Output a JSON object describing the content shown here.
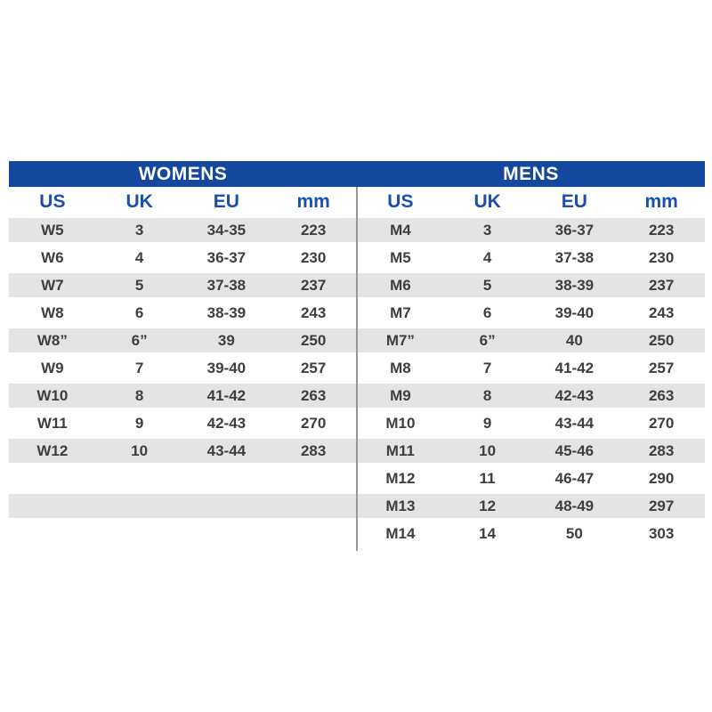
{
  "colors": {
    "header_bar_blue": "#14479E",
    "column_header_blue": "#1A4FB0",
    "row_stripe_gray": "#E4E4E4",
    "data_text_gray": "#3E3E3E",
    "divider_gray": "#979797"
  },
  "chart_data": [
    {
      "type": "table",
      "title": "WOMENS",
      "columns": {
        "us": "US",
        "uk": "UK",
        "eu": "EU",
        "mm": "mm"
      },
      "rows": [
        {
          "us": "W5",
          "uk": "3",
          "eu": "34-35",
          "mm": "223"
        },
        {
          "us": "W6",
          "uk": "4",
          "eu": "36-37",
          "mm": "230"
        },
        {
          "us": "W7",
          "uk": "5",
          "eu": "37-38",
          "mm": "237"
        },
        {
          "us": "W8",
          "uk": "6",
          "eu": "38-39",
          "mm": "243"
        },
        {
          "us": "W8”",
          "uk": "6”",
          "eu": "39",
          "mm": "250"
        },
        {
          "us": "W9",
          "uk": "7",
          "eu": "39-40",
          "mm": "257"
        },
        {
          "us": "W10",
          "uk": "8",
          "eu": "41-42",
          "mm": "263"
        },
        {
          "us": "W11",
          "uk": "9",
          "eu": "42-43",
          "mm": "270"
        },
        {
          "us": "W12",
          "uk": "10",
          "eu": "43-44",
          "mm": "283"
        },
        {
          "us": "",
          "uk": "",
          "eu": "",
          "mm": ""
        },
        {
          "us": "",
          "uk": "",
          "eu": "",
          "mm": ""
        }
      ]
    },
    {
      "type": "table",
      "title": "MENS",
      "columns": {
        "us": "US",
        "uk": "UK",
        "eu": "EU",
        "mm": "mm"
      },
      "rows": [
        {
          "us": "M4",
          "uk": "3",
          "eu": "36-37",
          "mm": "223"
        },
        {
          "us": "M5",
          "uk": "4",
          "eu": "37-38",
          "mm": "230"
        },
        {
          "us": "M6",
          "uk": "5",
          "eu": "38-39",
          "mm": "237"
        },
        {
          "us": "M7",
          "uk": "6",
          "eu": "39-40",
          "mm": "243"
        },
        {
          "us": "M7”",
          "uk": "6”",
          "eu": "40",
          "mm": "250"
        },
        {
          "us": "M8",
          "uk": "7",
          "eu": "41-42",
          "mm": "257"
        },
        {
          "us": "M9",
          "uk": "8",
          "eu": "42-43",
          "mm": "263"
        },
        {
          "us": "M10",
          "uk": "9",
          "eu": "43-44",
          "mm": "270"
        },
        {
          "us": "M11",
          "uk": "10",
          "eu": "45-46",
          "mm": "283"
        },
        {
          "us": "M12",
          "uk": "11",
          "eu": "46-47",
          "mm": "290"
        },
        {
          "us": "M13",
          "uk": "12",
          "eu": "48-49",
          "mm": "297"
        },
        {
          "us": "M14",
          "uk": "14",
          "eu": "50",
          "mm": "303"
        }
      ]
    }
  ]
}
